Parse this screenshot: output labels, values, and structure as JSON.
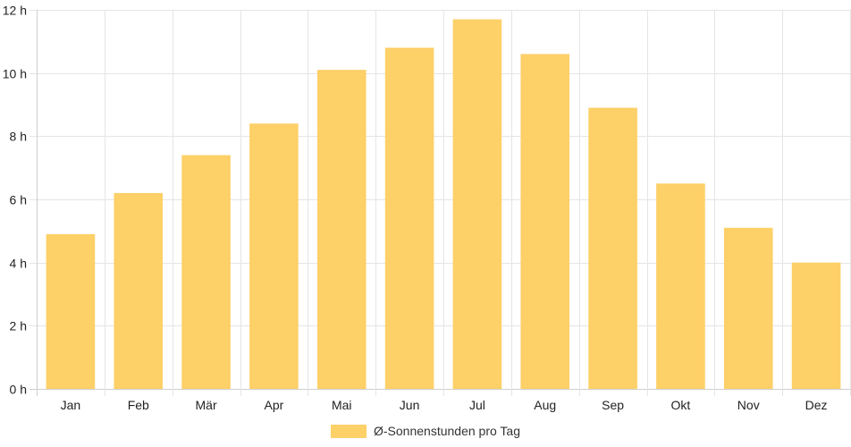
{
  "chart_data": {
    "type": "bar",
    "categories": [
      "Jan",
      "Feb",
      "Mär",
      "Apr",
      "Mai",
      "Jun",
      "Jul",
      "Aug",
      "Sep",
      "Okt",
      "Nov",
      "Dez"
    ],
    "series": [
      {
        "name": "Ø-Sonnenstunden pro Tag",
        "values": [
          4.9,
          6.2,
          7.4,
          8.4,
          10.1,
          10.8,
          11.7,
          10.6,
          8.9,
          6.5,
          5.1,
          4.0
        ],
        "color": "#fdd068"
      }
    ],
    "ylim": [
      0,
      12
    ],
    "yticks": [
      0,
      2,
      4,
      6,
      8,
      10,
      12
    ],
    "y_unit": "h",
    "grid": true,
    "legend_position": "bottom-center"
  }
}
